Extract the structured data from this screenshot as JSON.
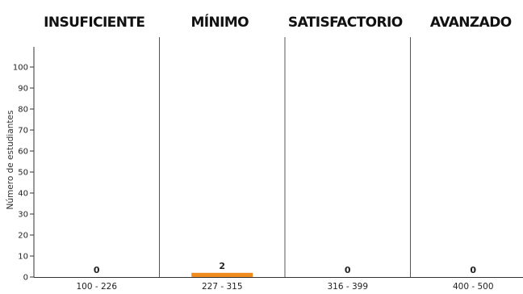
{
  "chart_data": {
    "type": "bar",
    "title": "",
    "xlabel": "",
    "ylabel": "Número de estudiantes",
    "ylim": [
      0,
      105
    ],
    "yticks": [
      0,
      10,
      20,
      30,
      40,
      50,
      60,
      70,
      80,
      90,
      100
    ],
    "levels": [
      "INSUFICIENTE",
      "MÍNIMO",
      "SATISFACTORIO",
      "AVANZADO"
    ],
    "categories": [
      "100 - 226",
      "227 - 315",
      "316 - 399",
      "400 - 500"
    ],
    "values": [
      0,
      2,
      0,
      0
    ],
    "data_labels": [
      "0",
      "2",
      "0",
      "0"
    ],
    "bar_color": "#f08c1e",
    "grid": false
  }
}
